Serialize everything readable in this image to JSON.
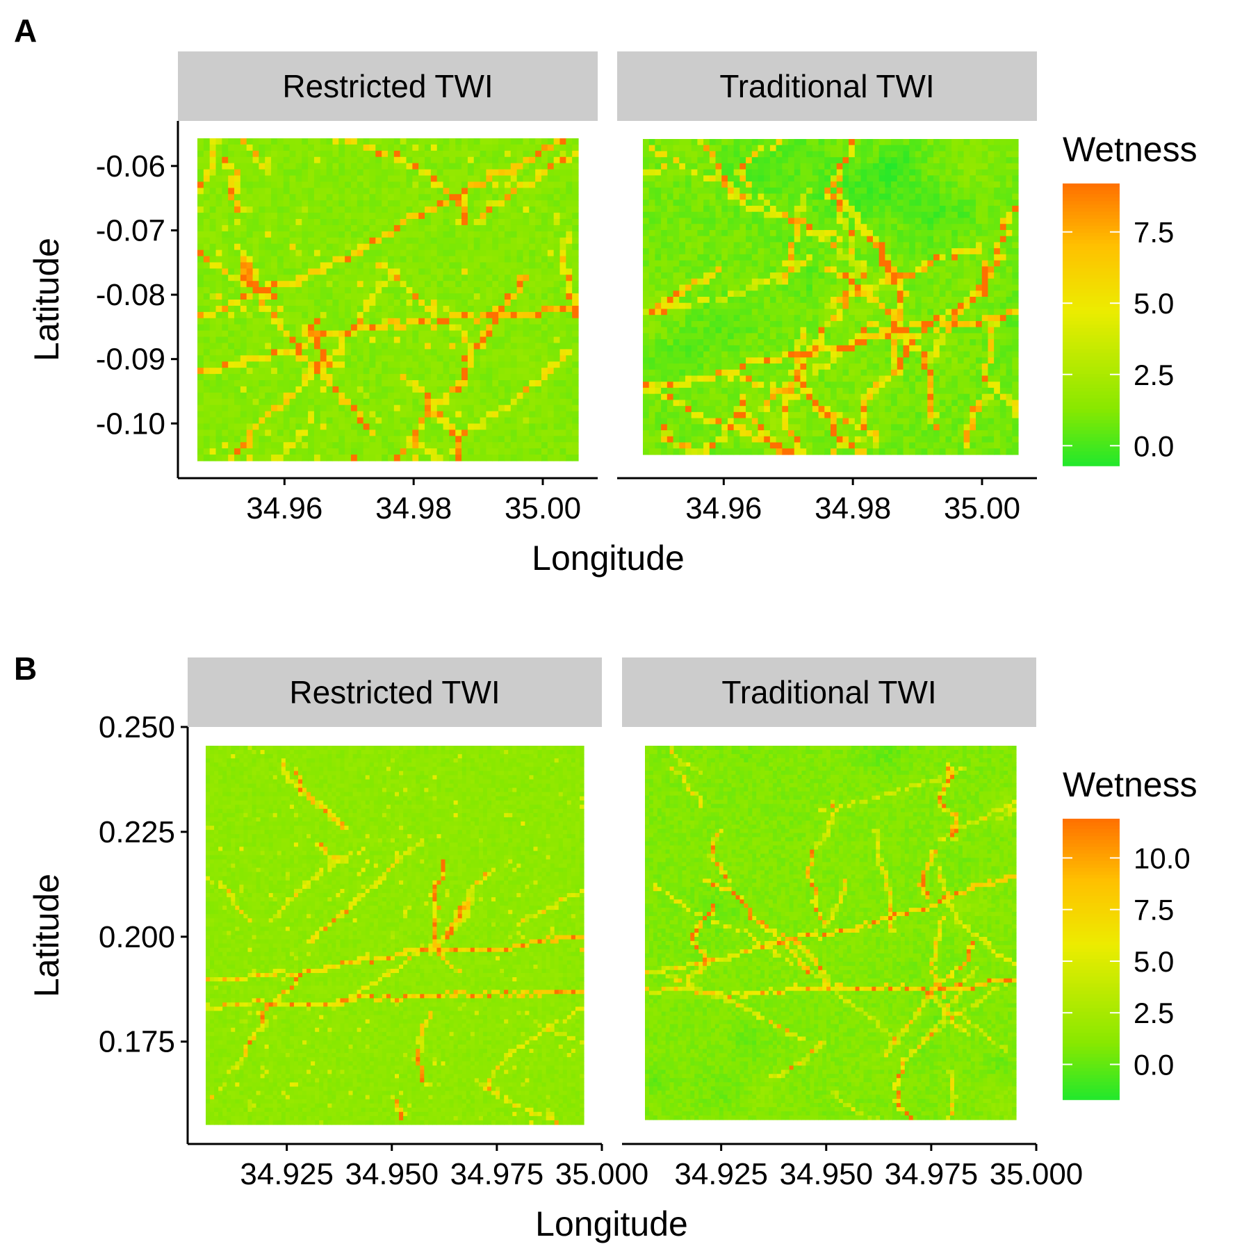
{
  "chart_data": [
    {
      "type": "heatmap",
      "panel_label": "A",
      "xlabel": "Longitude",
      "ylabel": "Latitude",
      "facets": [
        "Restricted TWI",
        "Traditional TWI"
      ],
      "x_ticks": [
        "34.96",
        "34.98",
        "35.00"
      ],
      "x_tick_values": [
        34.96,
        34.98,
        35.0
      ],
      "y_ticks": [
        "-0.06",
        "-0.07",
        "-0.08",
        "-0.09",
        "-0.10"
      ],
      "y_tick_values": [
        -0.06,
        -0.07,
        -0.08,
        -0.09,
        -0.1
      ],
      "xlim": [
        34.9435,
        35.0085
      ],
      "ylim": [
        -0.1085,
        -0.053
      ],
      "extent": {
        "restricted": {
          "x": [
            34.9455,
            35.0055
          ],
          "y": [
            -0.1058,
            -0.0552
          ]
        },
        "traditional": {
          "x": [
            34.9455,
            35.005
          ],
          "y": [
            -0.105,
            -0.0552
          ]
        }
      },
      "legend": {
        "title": "Wetness",
        "labels": [
          "7.5",
          "5.0",
          "2.5",
          "0.0"
        ],
        "values": [
          7.5,
          5.0,
          2.5,
          0.0
        ],
        "range": [
          -0.7,
          9.2
        ]
      },
      "colors": {
        "low": "#22e82c",
        "mid_low": "#88e800",
        "mid": "#ecec00",
        "mid_high": "#ffc000",
        "high": "#ff7000"
      },
      "grid": false
    },
    {
      "type": "heatmap",
      "panel_label": "B",
      "xlabel": "Longitude",
      "ylabel": "Latitude",
      "facets": [
        "Restricted TWI",
        "Traditional TWI"
      ],
      "x_ticks": [
        "34.925",
        "34.950",
        "34.975",
        "35.000"
      ],
      "x_tick_values": [
        34.925,
        34.95,
        34.975,
        35.0
      ],
      "y_ticks": [
        "0.250",
        "0.225",
        "0.200",
        "0.175"
      ],
      "y_tick_values": [
        0.25,
        0.225,
        0.2,
        0.175
      ],
      "xlim": [
        34.9014,
        35.0
      ],
      "ylim": [
        0.1506,
        0.25
      ],
      "extent": {
        "restricted": {
          "x": [
            34.9056,
            34.996
          ],
          "y": [
            0.1525,
            0.2459
          ]
        },
        "traditional": {
          "x": [
            34.9046,
            34.9935
          ],
          "y": [
            0.1533,
            0.2459
          ]
        }
      },
      "legend": {
        "title": "Wetness",
        "labels": [
          "10.0",
          "7.5",
          "5.0",
          "2.5",
          "0.0"
        ],
        "values": [
          10.0,
          7.5,
          5.0,
          2.5,
          0.0
        ],
        "range": [
          -1.7,
          11.9
        ]
      },
      "colors": {
        "low": "#22e82c",
        "mid_low": "#88e800",
        "mid": "#ecec00",
        "mid_high": "#ffc000",
        "high": "#ff7000"
      },
      "grid": false
    }
  ]
}
